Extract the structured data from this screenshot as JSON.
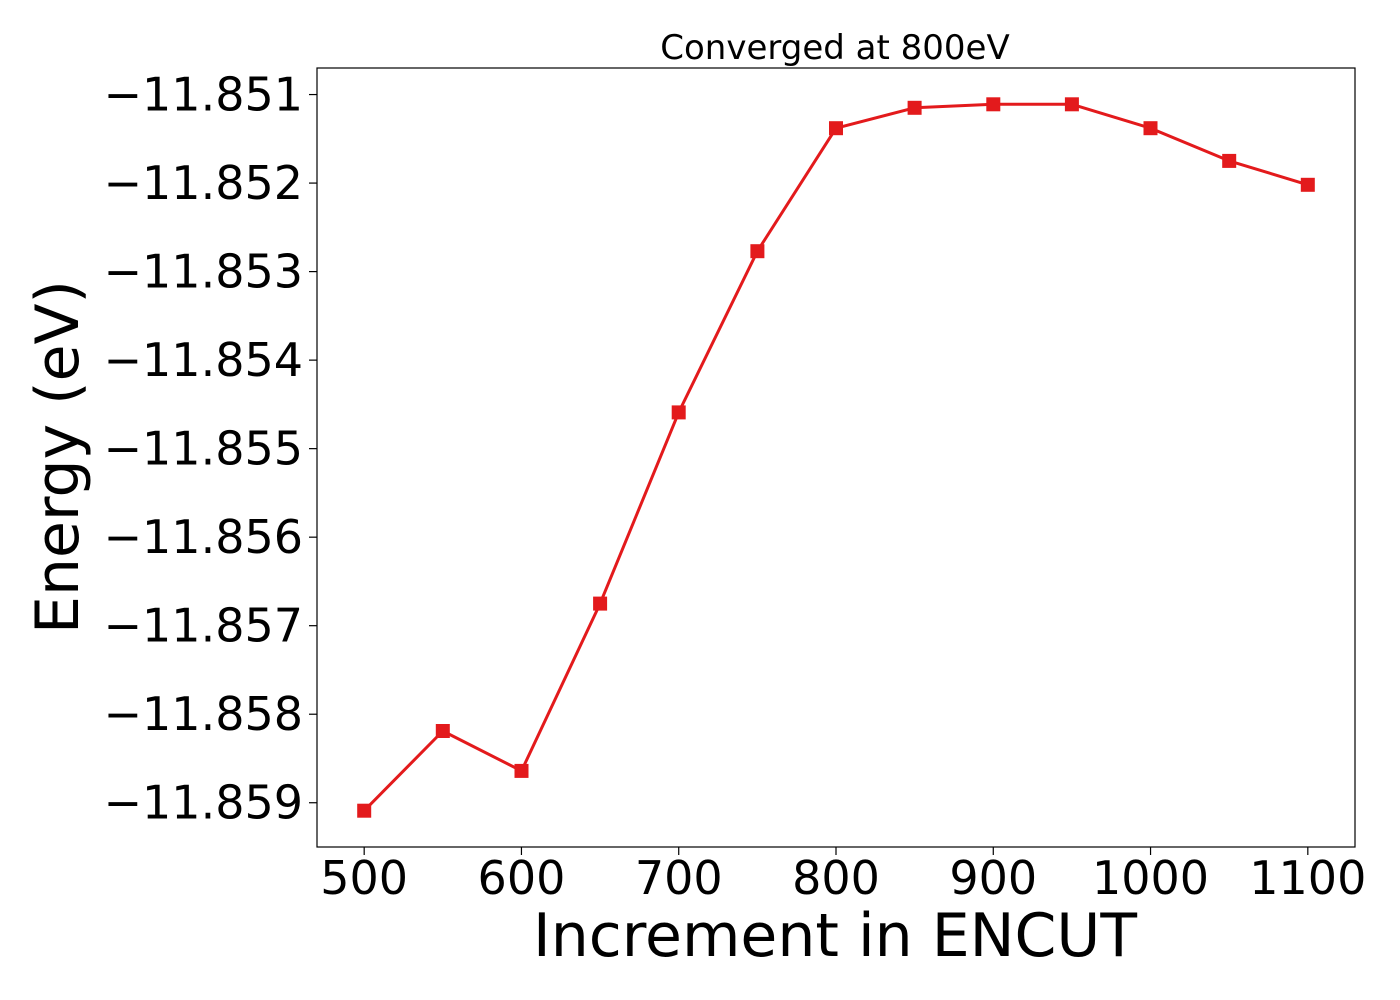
{
  "chart_data": {
    "type": "line",
    "title": "Converged at 800eV",
    "xlabel": "Increment in ENCUT",
    "ylabel": "Energy (eV)",
    "x": [
      500,
      550,
      600,
      650,
      700,
      750,
      800,
      850,
      900,
      950,
      1000,
      1050,
      1100
    ],
    "series": [
      {
        "values": [
          -11.85909,
          -11.85819,
          -11.85864,
          -11.85675,
          -11.85459,
          -11.85277,
          -11.85138,
          -11.85115,
          -11.85111,
          -11.85111,
          -11.85138,
          -11.85175,
          -11.85202
        ]
      }
    ],
    "xlim": [
      470,
      1130
    ],
    "ylim": [
      -11.8595,
      -11.8507
    ],
    "xticks": [
      500,
      600,
      700,
      800,
      900,
      1000,
      1100
    ],
    "xtick_labels": [
      "500",
      "600",
      "700",
      "800",
      "900",
      "1000",
      "1100"
    ],
    "yticks": [
      -11.851,
      -11.852,
      -11.853,
      -11.854,
      -11.855,
      -11.856,
      -11.857,
      -11.858,
      -11.859
    ],
    "ytick_labels": [
      "−11.851",
      "−11.852",
      "−11.853",
      "−11.854",
      "−11.855",
      "−11.856",
      "−11.857",
      "−11.858",
      "−11.859"
    ],
    "grid": false,
    "marker": "square",
    "colors": {
      "line": "#e31a1c"
    }
  }
}
